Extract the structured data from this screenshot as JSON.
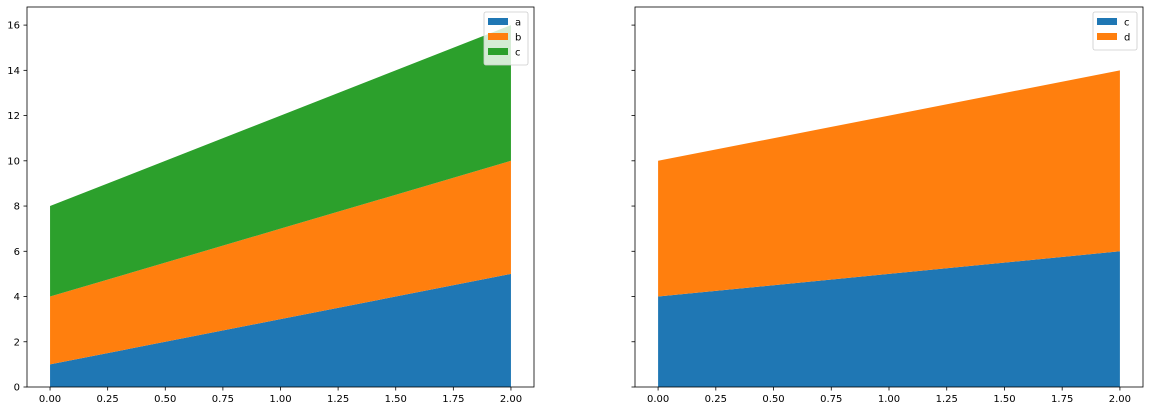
{
  "chart_data": [
    {
      "type": "area",
      "stacked": true,
      "x": [
        0,
        1,
        2
      ],
      "series": [
        {
          "name": "a",
          "values": [
            1,
            3,
            5
          ],
          "color": "#1f77b4"
        },
        {
          "name": "b",
          "values": [
            3,
            4,
            5
          ],
          "color": "#ff7f0e"
        },
        {
          "name": "c",
          "values": [
            4,
            5,
            6
          ],
          "color": "#2ca02c"
        }
      ],
      "xlim": [
        -0.1,
        2.1
      ],
      "ylim": [
        0,
        16.8
      ],
      "xticks": [
        "0.00",
        "0.25",
        "0.50",
        "0.75",
        "1.00",
        "1.25",
        "1.50",
        "1.75",
        "2.00"
      ],
      "yticks": [
        "0",
        "2",
        "4",
        "6",
        "8",
        "10",
        "12",
        "14",
        "16"
      ],
      "show_yticklabels": true,
      "grid": false,
      "legend": "upper right",
      "title": "",
      "xlabel": "",
      "ylabel": ""
    },
    {
      "type": "area",
      "stacked": true,
      "x": [
        0,
        1,
        2
      ],
      "series": [
        {
          "name": "c",
          "values": [
            4,
            5,
            6
          ],
          "color": "#1f77b4"
        },
        {
          "name": "d",
          "values": [
            6,
            7,
            8
          ],
          "color": "#ff7f0e"
        }
      ],
      "xlim": [
        -0.1,
        2.1
      ],
      "ylim": [
        0,
        16.8
      ],
      "xticks": [
        "0.00",
        "0.25",
        "0.50",
        "0.75",
        "1.00",
        "1.25",
        "1.50",
        "1.75",
        "2.00"
      ],
      "yticks": [
        "0",
        "2",
        "4",
        "6",
        "8",
        "10",
        "12",
        "14",
        "16"
      ],
      "show_yticklabels": false,
      "grid": false,
      "legend": "upper right",
      "title": "",
      "xlabel": "",
      "ylabel": ""
    }
  ]
}
